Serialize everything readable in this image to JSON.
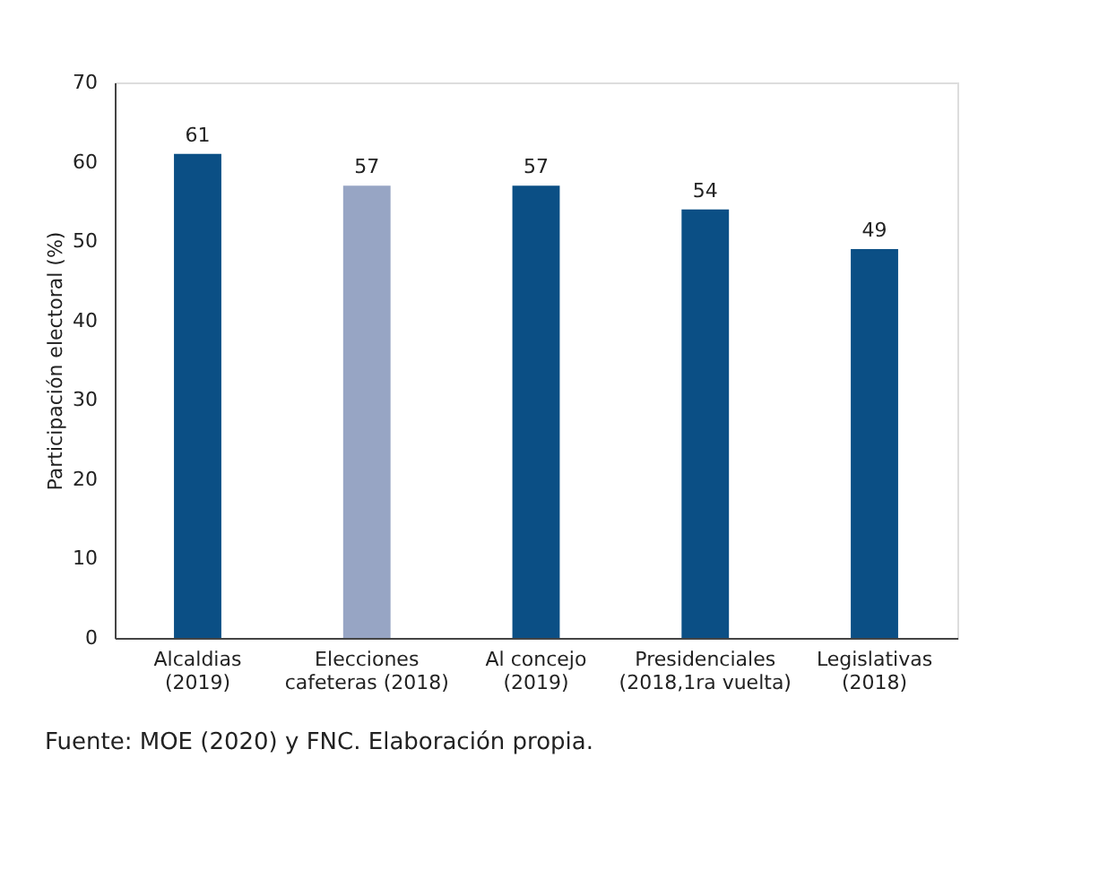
{
  "chart_data": {
    "type": "bar",
    "ylabel": "Participación electoral (%)",
    "categories": [
      "Alcaldias\n(2019)",
      "Elecciones\ncafeteras (2018)",
      "Al concejo\n(2019)",
      "Presidenciales\n(2018,1ra vuelta)",
      "Legislativas\n(2018)"
    ],
    "values": [
      61,
      57,
      57,
      54,
      49
    ],
    "colors": [
      "#0b4f85",
      "#97a5c4",
      "#0b4f85",
      "#0b4f85",
      "#0b4f85"
    ],
    "ylim": [
      0,
      70
    ],
    "yticks": [
      0,
      10,
      20,
      30,
      40,
      50,
      60,
      70
    ],
    "grid": false,
    "data_labels": true,
    "annotations": [
      "Fuente: MOE (2020) y FNC. Elaboración propia."
    ]
  }
}
